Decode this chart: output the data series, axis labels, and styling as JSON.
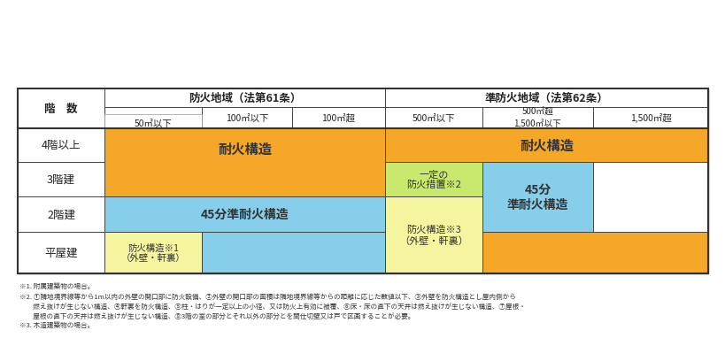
{
  "color_orange": "#F5A828",
  "color_yellow_green": "#C8E86E",
  "color_yellow": "#F5F5A0",
  "color_blue": "#87CEEB",
  "color_white": "#FFFFFF",
  "color_border": "#444444",
  "header1": [
    "防火地域（法第61条）",
    "準防火地域（法第62条）"
  ],
  "header2": [
    "50㎡以下",
    "100㎡以下",
    "100㎡超",
    "500㎡以下",
    "500㎡超\n1,500㎡以下",
    "1,500㎡超"
  ],
  "row_labels": [
    "4階以上",
    "3階建",
    "2階建",
    "平屋建"
  ],
  "footnotes": [
    "※1. 附属建築物の場合。",
    "※2. ①隣地境界線等から1m以内の外壁の開口部に防火設備、②外壁の開口部の面積は隣地境界線等からの距離に応じた数値以下、③外壁を防火構造とし屋内側から",
    "　　燃え抜けが生じない構造、④軒裏を防火構造、⑤柱・はりが一定以上の小径、又は防火上有効に被覆、⑥床・床の直下の天井は燃え抜けが生じない構造、⑦屋根・",
    "　　屋根の直下の天井は燃え抜けが生じない構造、⑧3階の室の部分とそれ以外の部分とを間仕切壁又は戸で区画することが必要。",
    "※3. 木造建築物の場合。"
  ]
}
